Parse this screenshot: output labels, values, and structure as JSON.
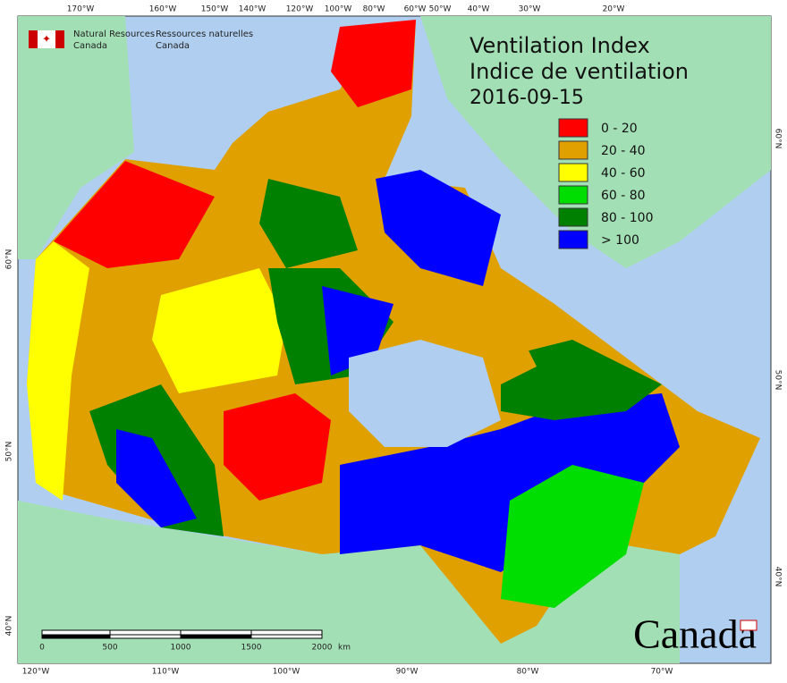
{
  "header": {
    "org_en": [
      "Natural Resources",
      "Canada"
    ],
    "org_fr": [
      "Ressources naturelles",
      "Canada"
    ]
  },
  "title": "Ventilation Index",
  "subtitle": "Indice de ventilation",
  "date": "2016-09-15",
  "legend": {
    "items": [
      {
        "label": "0 - 20",
        "color": "#ff0000"
      },
      {
        "label": "20 - 40",
        "color": "#e0a000"
      },
      {
        "label": "40 - 60",
        "color": "#ffff00"
      },
      {
        "label": "60 - 80",
        "color": "#00dd00"
      },
      {
        "label": "80 - 100",
        "color": "#008000"
      },
      {
        "label": "> 100",
        "color": "#0000ff"
      }
    ]
  },
  "graticule": {
    "top": [
      "170°W",
      "160°W",
      "150°W",
      "140°W",
      "120°W",
      "100°W",
      "80°W",
      "60°W",
      "50°W",
      "40°W",
      "30°W",
      "20°W"
    ],
    "bottom": [
      "120°W",
      "110°W",
      "100°W",
      "90°W",
      "80°W",
      "70°W"
    ],
    "left": [
      "60°N",
      "50°N",
      "40°N"
    ],
    "right": [
      "60°N",
      "50°N",
      "40°N"
    ]
  },
  "scale_bar": {
    "labels": [
      "0",
      "500",
      "1000",
      "1500",
      "2000"
    ],
    "unit": "km"
  },
  "wordmark": "Canada"
}
